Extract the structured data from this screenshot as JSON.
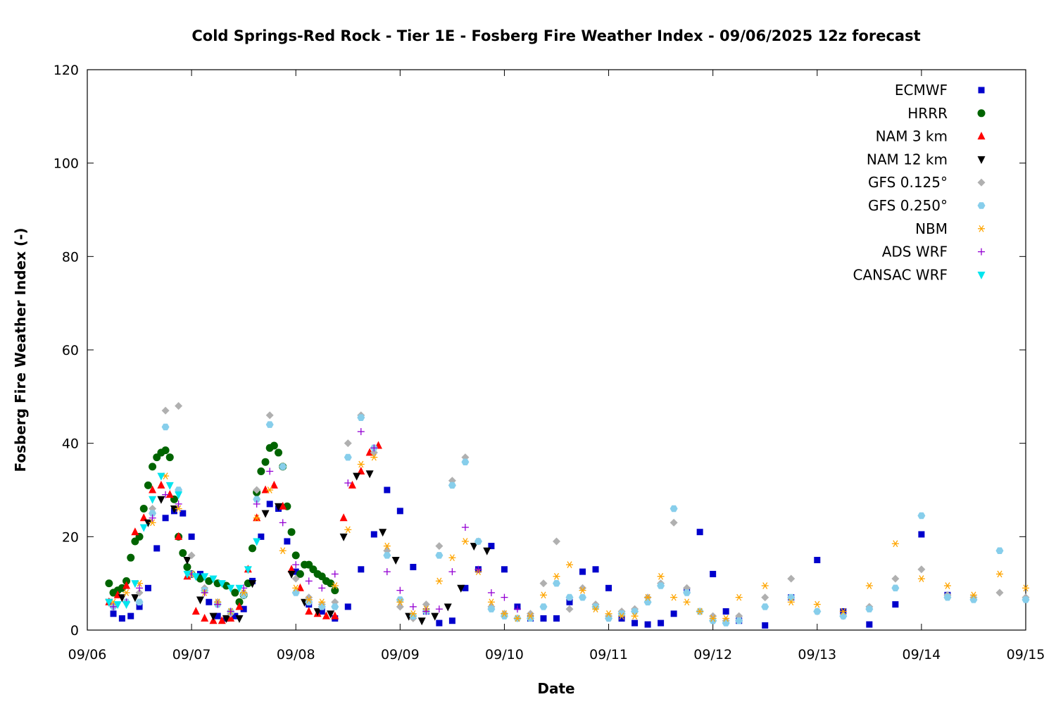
{
  "chart_data": {
    "type": "scatter",
    "title": "Cold Springs-Red Rock - Tier 1E - Fosberg Fire Weather Index - 09/06/2025 12z forecast",
    "xlabel": "Date",
    "ylabel": "Fosberg Fire Weather Index (-)",
    "xlim": [
      "2025-09-06T00:00",
      "2025-09-15T00:00"
    ],
    "ylim": [
      0,
      120
    ],
    "x_ticks": [
      "09/06",
      "09/07",
      "09/08",
      "09/09",
      "09/10",
      "09/11",
      "09/12",
      "09/13",
      "09/14",
      "09/15"
    ],
    "y_ticks": [
      0,
      20,
      40,
      60,
      80,
      100,
      120
    ],
    "grid": false,
    "legend_position": "top-right",
    "series": [
      {
        "name": "ECMWF",
        "color": "#0000cc",
        "marker": "square",
        "x": [
          "2025-09-06T06:00",
          "2025-09-06T08:00",
          "2025-09-06T10:00",
          "2025-09-06T12:00",
          "2025-09-06T14:00",
          "2025-09-06T16:00",
          "2025-09-06T18:00",
          "2025-09-06T20:00",
          "2025-09-06T22:00",
          "2025-09-07T00:00",
          "2025-09-07T02:00",
          "2025-09-07T04:00",
          "2025-09-07T06:00",
          "2025-09-07T08:00",
          "2025-09-07T10:00",
          "2025-09-07T12:00",
          "2025-09-07T14:00",
          "2025-09-07T16:00",
          "2025-09-07T18:00",
          "2025-09-07T20:00",
          "2025-09-07T22:00",
          "2025-09-08T00:00",
          "2025-09-08T03:00",
          "2025-09-08T06:00",
          "2025-09-08T09:00",
          "2025-09-08T12:00",
          "2025-09-08T15:00",
          "2025-09-08T18:00",
          "2025-09-08T21:00",
          "2025-09-09T00:00",
          "2025-09-09T03:00",
          "2025-09-09T06:00",
          "2025-09-09T09:00",
          "2025-09-09T12:00",
          "2025-09-09T15:00",
          "2025-09-09T18:00",
          "2025-09-09T21:00",
          "2025-09-10T00:00",
          "2025-09-10T03:00",
          "2025-09-10T06:00",
          "2025-09-10T09:00",
          "2025-09-10T12:00",
          "2025-09-10T15:00",
          "2025-09-10T18:00",
          "2025-09-10T21:00",
          "2025-09-11T00:00",
          "2025-09-11T03:00",
          "2025-09-11T06:00",
          "2025-09-11T09:00",
          "2025-09-11T12:00",
          "2025-09-11T15:00",
          "2025-09-11T18:00",
          "2025-09-11T21:00",
          "2025-09-12T00:00",
          "2025-09-12T03:00",
          "2025-09-12T06:00",
          "2025-09-12T12:00",
          "2025-09-12T18:00",
          "2025-09-13T00:00",
          "2025-09-13T06:00",
          "2025-09-13T12:00",
          "2025-09-13T18:00",
          "2025-09-14T00:00",
          "2025-09-14T06:00"
        ],
        "y": [
          3.5,
          2.5,
          3,
          5,
          9,
          17.5,
          24,
          25.5,
          25,
          20,
          12,
          6,
          3,
          2.5,
          3,
          4.5,
          10.5,
          20,
          27,
          26,
          19,
          12.5,
          5.5,
          4,
          2.5,
          5,
          13,
          20.5,
          30,
          25.5,
          13.5,
          4,
          1.5,
          2,
          9,
          13,
          18,
          13,
          5,
          2.5,
          2.5,
          2.5,
          6,
          12.5,
          13,
          9,
          2.5,
          1.5,
          1.2,
          1.5,
          3.5,
          8.5,
          21,
          12,
          4,
          2,
          1,
          7,
          15,
          4,
          1.2,
          5.5,
          20.5,
          7.5
        ]
      },
      {
        "name": "HRRR",
        "color": "#006400",
        "marker": "circle",
        "x": [
          "2025-09-06T05:00",
          "2025-09-06T06:00",
          "2025-09-06T07:00",
          "2025-09-06T08:00",
          "2025-09-06T09:00",
          "2025-09-06T10:00",
          "2025-09-06T11:00",
          "2025-09-06T12:00",
          "2025-09-06T13:00",
          "2025-09-06T14:00",
          "2025-09-06T15:00",
          "2025-09-06T16:00",
          "2025-09-06T17:00",
          "2025-09-06T18:00",
          "2025-09-06T19:00",
          "2025-09-06T20:00",
          "2025-09-06T21:00",
          "2025-09-06T22:00",
          "2025-09-06T23:00",
          "2025-09-07T00:00",
          "2025-09-07T02:00",
          "2025-09-07T04:00",
          "2025-09-07T06:00",
          "2025-09-07T08:00",
          "2025-09-07T10:00",
          "2025-09-07T11:00",
          "2025-09-07T12:00",
          "2025-09-07T13:00",
          "2025-09-07T14:00",
          "2025-09-07T15:00",
          "2025-09-07T16:00",
          "2025-09-07T17:00",
          "2025-09-07T18:00",
          "2025-09-07T19:00",
          "2025-09-07T20:00",
          "2025-09-07T21:00",
          "2025-09-07T22:00",
          "2025-09-07T23:00",
          "2025-09-08T00:00",
          "2025-09-08T01:00",
          "2025-09-08T02:00",
          "2025-09-08T03:00",
          "2025-09-08T04:00",
          "2025-09-08T05:00",
          "2025-09-08T06:00",
          "2025-09-08T07:00",
          "2025-09-08T08:00",
          "2025-09-08T09:00"
        ],
        "y": [
          10,
          8,
          8.5,
          9,
          10.5,
          15.5,
          19,
          20,
          26,
          31,
          35,
          37,
          38,
          38.5,
          37,
          28,
          20,
          16.5,
          13.5,
          12,
          11,
          10.5,
          10,
          9.5,
          8,
          6,
          7.5,
          10,
          17.5,
          29.5,
          34,
          36,
          39,
          39.5,
          38,
          35,
          26.5,
          21,
          16,
          12,
          14,
          14,
          13,
          12,
          11.5,
          10.5,
          10,
          8.5
        ]
      },
      {
        "name": "NAM 3 km",
        "color": "#ff0000",
        "marker": "triangle-up",
        "x": [
          "2025-09-06T05:00",
          "2025-09-06T07:00",
          "2025-09-06T09:00",
          "2025-09-06T11:00",
          "2025-09-06T13:00",
          "2025-09-06T15:00",
          "2025-09-06T17:00",
          "2025-09-06T19:00",
          "2025-09-06T21:00",
          "2025-09-06T23:00",
          "2025-09-07T01:00",
          "2025-09-07T03:00",
          "2025-09-07T05:00",
          "2025-09-07T07:00",
          "2025-09-07T09:00",
          "2025-09-07T11:00",
          "2025-09-07T13:00",
          "2025-09-07T15:00",
          "2025-09-07T17:00",
          "2025-09-07T19:00",
          "2025-09-07T21:00",
          "2025-09-07T23:00",
          "2025-09-08T01:00",
          "2025-09-08T03:00",
          "2025-09-08T05:00",
          "2025-09-08T07:00",
          "2025-09-08T09:00",
          "2025-09-08T11:00",
          "2025-09-08T13:00",
          "2025-09-08T15:00",
          "2025-09-08T17:00",
          "2025-09-08T19:00"
        ],
        "y": [
          6,
          7.5,
          9.5,
          21,
          24,
          30,
          31,
          29,
          20,
          11.5,
          4,
          2.5,
          2,
          2,
          2.5,
          5,
          13,
          24,
          30,
          31,
          26.5,
          13,
          9,
          4,
          3.5,
          3,
          3,
          24,
          31,
          34,
          38,
          39.5
        ]
      },
      {
        "name": "NAM 12 km",
        "color": "#000000",
        "marker": "triangle-down",
        "x": [
          "2025-09-06T05:00",
          "2025-09-06T08:00",
          "2025-09-06T11:00",
          "2025-09-06T14:00",
          "2025-09-06T17:00",
          "2025-09-06T20:00",
          "2025-09-06T23:00",
          "2025-09-07T02:00",
          "2025-09-07T05:00",
          "2025-09-07T08:00",
          "2025-09-07T11:00",
          "2025-09-07T14:00",
          "2025-09-07T17:00",
          "2025-09-07T20:00",
          "2025-09-07T23:00",
          "2025-09-08T02:00",
          "2025-09-08T05:00",
          "2025-09-08T08:00",
          "2025-09-08T11:00",
          "2025-09-08T14:00",
          "2025-09-08T17:00",
          "2025-09-08T20:00",
          "2025-09-08T23:00",
          "2025-09-09T02:00",
          "2025-09-09T05:00",
          "2025-09-09T08:00",
          "2025-09-09T11:00",
          "2025-09-09T14:00",
          "2025-09-09T17:00",
          "2025-09-09T20:00"
        ],
        "y": [
          6,
          7,
          7,
          23,
          28,
          26,
          15,
          6.5,
          3,
          2.5,
          2.5,
          10,
          25,
          26.5,
          12,
          6,
          4,
          3.5,
          20,
          33,
          33.5,
          21,
          15,
          3,
          2,
          3,
          5,
          9,
          18,
          17
        ]
      },
      {
        "name": "GFS 0.125°",
        "color": "#b0b0b0",
        "marker": "diamond",
        "x": [
          "2025-09-06T06:00",
          "2025-09-06T09:00",
          "2025-09-06T12:00",
          "2025-09-06T15:00",
          "2025-09-06T18:00",
          "2025-09-06T21:00",
          "2025-09-07T00:00",
          "2025-09-07T03:00",
          "2025-09-07T06:00",
          "2025-09-07T09:00",
          "2025-09-07T12:00",
          "2025-09-07T15:00",
          "2025-09-07T18:00",
          "2025-09-07T21:00",
          "2025-09-08T00:00",
          "2025-09-08T03:00",
          "2025-09-08T06:00",
          "2025-09-08T09:00",
          "2025-09-08T12:00",
          "2025-09-08T15:00",
          "2025-09-08T18:00",
          "2025-09-08T21:00",
          "2025-09-09T00:00",
          "2025-09-09T03:00",
          "2025-09-09T06:00",
          "2025-09-09T09:00",
          "2025-09-09T12:00",
          "2025-09-09T15:00",
          "2025-09-09T18:00",
          "2025-09-09T21:00",
          "2025-09-10T00:00",
          "2025-09-10T03:00",
          "2025-09-10T06:00",
          "2025-09-10T09:00",
          "2025-09-10T12:00",
          "2025-09-10T15:00",
          "2025-09-10T18:00",
          "2025-09-10T21:00",
          "2025-09-11T00:00",
          "2025-09-11T03:00",
          "2025-09-11T06:00",
          "2025-09-11T09:00",
          "2025-09-11T12:00",
          "2025-09-11T15:00",
          "2025-09-11T18:00",
          "2025-09-11T21:00",
          "2025-09-12T00:00",
          "2025-09-12T03:00",
          "2025-09-12T06:00",
          "2025-09-12T12:00",
          "2025-09-12T18:00",
          "2025-09-13T00:00",
          "2025-09-13T06:00",
          "2025-09-13T12:00",
          "2025-09-13T18:00",
          "2025-09-14T00:00",
          "2025-09-14T06:00",
          "2025-09-14T12:00",
          "2025-09-14T18:00",
          "2025-09-15T00:00"
        ],
        "y": [
          5,
          6,
          8,
          26,
          47,
          48,
          16,
          9,
          6,
          3.5,
          8,
          30,
          46,
          35,
          11,
          7,
          5.5,
          6,
          40,
          46,
          38,
          17,
          5,
          2.5,
          5.5,
          18,
          32,
          37,
          19,
          5,
          3.5,
          2.5,
          3.5,
          10,
          19,
          4.5,
          9,
          5.5,
          3,
          4,
          4.5,
          7,
          10,
          23,
          9,
          4,
          3,
          2,
          3,
          7,
          11,
          4,
          3,
          5,
          11,
          13,
          7.5,
          7,
          8,
          7
        ]
      },
      {
        "name": "GFS 0.250°",
        "color": "#87ceeb",
        "marker": "hexagon",
        "x": [
          "2025-09-06T06:00",
          "2025-09-06T09:00",
          "2025-09-06T12:00",
          "2025-09-06T15:00",
          "2025-09-06T18:00",
          "2025-09-06T21:00",
          "2025-09-07T00:00",
          "2025-09-07T03:00",
          "2025-09-07T06:00",
          "2025-09-07T09:00",
          "2025-09-07T12:00",
          "2025-09-07T15:00",
          "2025-09-07T18:00",
          "2025-09-07T21:00",
          "2025-09-08T00:00",
          "2025-09-08T03:00",
          "2025-09-08T06:00",
          "2025-09-08T09:00",
          "2025-09-08T12:00",
          "2025-09-08T15:00",
          "2025-09-08T18:00",
          "2025-09-08T21:00",
          "2025-09-09T00:00",
          "2025-09-09T03:00",
          "2025-09-09T06:00",
          "2025-09-09T09:00",
          "2025-09-09T12:00",
          "2025-09-09T15:00",
          "2025-09-09T18:00",
          "2025-09-09T21:00",
          "2025-09-10T00:00",
          "2025-09-10T03:00",
          "2025-09-10T06:00",
          "2025-09-10T09:00",
          "2025-09-10T12:00",
          "2025-09-10T15:00",
          "2025-09-10T18:00",
          "2025-09-10T21:00",
          "2025-09-11T00:00",
          "2025-09-11T03:00",
          "2025-09-11T06:00",
          "2025-09-11T09:00",
          "2025-09-11T12:00",
          "2025-09-11T15:00",
          "2025-09-11T18:00",
          "2025-09-11T21:00",
          "2025-09-12T00:00",
          "2025-09-12T03:00",
          "2025-09-12T06:00",
          "2025-09-12T12:00",
          "2025-09-12T18:00",
          "2025-09-13T00:00",
          "2025-09-13T06:00",
          "2025-09-13T12:00",
          "2025-09-13T18:00",
          "2025-09-14T00:00",
          "2025-09-14T06:00",
          "2025-09-14T12:00",
          "2025-09-14T18:00",
          "2025-09-15T00:00"
        ],
        "y": [
          5,
          6,
          6,
          25,
          43.5,
          30,
          12,
          8.5,
          5.5,
          4,
          7.5,
          28,
          44,
          35,
          8,
          6,
          5,
          5,
          37,
          45.5,
          39,
          16,
          6.5,
          3,
          4,
          16,
          31,
          36,
          19,
          4.5,
          3,
          2.5,
          2.5,
          5,
          10,
          7,
          7,
          5,
          2.5,
          3.5,
          4,
          6,
          9.5,
          26,
          8,
          4,
          2,
          1.5,
          2,
          5,
          7,
          4,
          3,
          4.5,
          9,
          24.5,
          7,
          6.5,
          17,
          6.5
        ]
      },
      {
        "name": "NBM",
        "color": "#ffa500",
        "marker": "asterisk",
        "x": [
          "2025-09-06T06:00",
          "2025-09-06T09:00",
          "2025-09-06T12:00",
          "2025-09-06T15:00",
          "2025-09-06T18:00",
          "2025-09-06T21:00",
          "2025-09-07T00:00",
          "2025-09-07T03:00",
          "2025-09-07T06:00",
          "2025-09-07T09:00",
          "2025-09-07T12:00",
          "2025-09-07T15:00",
          "2025-09-07T18:00",
          "2025-09-07T21:00",
          "2025-09-08T00:00",
          "2025-09-08T03:00",
          "2025-09-08T06:00",
          "2025-09-08T09:00",
          "2025-09-08T12:00",
          "2025-09-08T15:00",
          "2025-09-08T18:00",
          "2025-09-08T21:00",
          "2025-09-09T00:00",
          "2025-09-09T03:00",
          "2025-09-09T06:00",
          "2025-09-09T09:00",
          "2025-09-09T12:00",
          "2025-09-09T15:00",
          "2025-09-09T18:00",
          "2025-09-09T21:00",
          "2025-09-10T00:00",
          "2025-09-10T03:00",
          "2025-09-10T06:00",
          "2025-09-10T09:00",
          "2025-09-10T12:00",
          "2025-09-10T15:00",
          "2025-09-10T18:00",
          "2025-09-10T21:00",
          "2025-09-11T00:00",
          "2025-09-11T03:00",
          "2025-09-11T06:00",
          "2025-09-11T09:00",
          "2025-09-11T12:00",
          "2025-09-11T15:00",
          "2025-09-11T18:00",
          "2025-09-11T21:00",
          "2025-09-12T00:00",
          "2025-09-12T03:00",
          "2025-09-12T06:00",
          "2025-09-12T12:00",
          "2025-09-12T18:00",
          "2025-09-13T00:00",
          "2025-09-13T06:00",
          "2025-09-13T12:00",
          "2025-09-13T18:00",
          "2025-09-14T00:00",
          "2025-09-14T06:00",
          "2025-09-14T12:00",
          "2025-09-14T18:00",
          "2025-09-15T00:00"
        ],
        "y": [
          6,
          8,
          10,
          23,
          33,
          26,
          12,
          8,
          6,
          4,
          8,
          24,
          30,
          17,
          9,
          6.5,
          6,
          9.5,
          21.5,
          35.5,
          37,
          18,
          6,
          3.5,
          4.5,
          10.5,
          15.5,
          19,
          12.5,
          6,
          3.5,
          2.5,
          3,
          7.5,
          11.5,
          14,
          8.5,
          4.5,
          3.5,
          3,
          3,
          7,
          11.5,
          7,
          6,
          4,
          2.5,
          2.5,
          7,
          9.5,
          6,
          5.5,
          4,
          9.5,
          18.5,
          11,
          9.5,
          7.5,
          12,
          9
        ]
      },
      {
        "name": "ADS WRF",
        "color": "#9400d3",
        "marker": "plus",
        "x": [
          "2025-09-06T06:00",
          "2025-09-06T09:00",
          "2025-09-06T12:00",
          "2025-09-06T15:00",
          "2025-09-06T18:00",
          "2025-09-06T21:00",
          "2025-09-07T00:00",
          "2025-09-07T03:00",
          "2025-09-07T06:00",
          "2025-09-07T09:00",
          "2025-09-07T12:00",
          "2025-09-07T15:00",
          "2025-09-07T18:00",
          "2025-09-07T21:00",
          "2025-09-08T00:00",
          "2025-09-08T03:00",
          "2025-09-08T06:00",
          "2025-09-08T09:00",
          "2025-09-08T12:00",
          "2025-09-08T15:00",
          "2025-09-08T18:00",
          "2025-09-08T21:00",
          "2025-09-09T00:00",
          "2025-09-09T03:00",
          "2025-09-09T06:00",
          "2025-09-09T09:00",
          "2025-09-09T12:00",
          "2025-09-09T15:00",
          "2025-09-09T18:00",
          "2025-09-09T21:00",
          "2025-09-10T00:00",
          "2025-09-10T03:00"
        ],
        "y": [
          5,
          6,
          9,
          24,
          29,
          27,
          12,
          8,
          5.5,
          4,
          9,
          27,
          34,
          23,
          14,
          10.5,
          9,
          12,
          31.5,
          42.5,
          39,
          12.5,
          8.5,
          5,
          4,
          4.5,
          12.5,
          22,
          13,
          8,
          7,
          4.5
        ]
      },
      {
        "name": "CANSAC WRF",
        "color": "#00e5ee",
        "marker": "triangle-down",
        "x": [
          "2025-09-06T05:00",
          "2025-09-06T07:00",
          "2025-09-06T09:00",
          "2025-09-06T11:00",
          "2025-09-06T13:00",
          "2025-09-06T15:00",
          "2025-09-06T17:00",
          "2025-09-06T19:00",
          "2025-09-06T21:00",
          "2025-09-06T23:00",
          "2025-09-07T01:00",
          "2025-09-07T03:00",
          "2025-09-07T05:00",
          "2025-09-07T07:00",
          "2025-09-07T09:00",
          "2025-09-07T11:00",
          "2025-09-07T13:00",
          "2025-09-07T15:00"
        ],
        "y": [
          6,
          5.5,
          5.5,
          10,
          22,
          28,
          33,
          31,
          29,
          12,
          11.5,
          11.5,
          11,
          10,
          9,
          9,
          13,
          19
        ]
      }
    ]
  }
}
